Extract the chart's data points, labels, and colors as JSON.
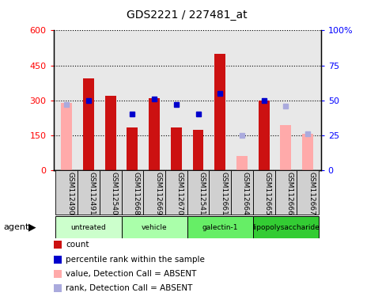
{
  "title": "GDS2221 / 227481_at",
  "samples": [
    "GSM112490",
    "GSM112491",
    "GSM112540",
    "GSM112668",
    "GSM112669",
    "GSM112670",
    "GSM112541",
    "GSM112661",
    "GSM112664",
    "GSM112665",
    "GSM112666",
    "GSM112667"
  ],
  "groups": [
    {
      "name": "untreated",
      "indices": [
        0,
        1,
        2
      ],
      "color": "#ccffcc"
    },
    {
      "name": "vehicle",
      "indices": [
        3,
        4,
        5
      ],
      "color": "#aaffaa"
    },
    {
      "name": "galectin-1",
      "indices": [
        6,
        7,
        8
      ],
      "color": "#66ee66"
    },
    {
      "name": "lipopolysaccharide",
      "indices": [
        9,
        10,
        11
      ],
      "color": "#33cc33"
    }
  ],
  "count_present": [
    null,
    395,
    320,
    185,
    310,
    185,
    175,
    500,
    null,
    300,
    null,
    null
  ],
  "count_absent": [
    290,
    null,
    null,
    null,
    null,
    null,
    null,
    null,
    60,
    null,
    195,
    155
  ],
  "pct_present": [
    null,
    50,
    null,
    40,
    51,
    47,
    40,
    55,
    null,
    50,
    null,
    null
  ],
  "pct_absent": [
    47,
    null,
    null,
    null,
    null,
    null,
    null,
    null,
    25,
    null,
    46,
    26
  ],
  "left_ylim": [
    0,
    600
  ],
  "right_ylim": [
    0,
    100
  ],
  "left_yticks": [
    0,
    150,
    300,
    450,
    600
  ],
  "left_yticklabels": [
    "0",
    "150",
    "300",
    "450",
    "600"
  ],
  "right_yticks": [
    0,
    25,
    50,
    75,
    100
  ],
  "right_yticklabels": [
    "0",
    "25",
    "50",
    "75",
    "100%"
  ],
  "count_color": "#cc1111",
  "count_absent_color": "#ffaaaa",
  "pct_color": "#0000cc",
  "pct_absent_color": "#aaaadd",
  "plot_bg": "#e8e8e8",
  "legend_items": [
    {
      "color": "#cc1111",
      "label": "count"
    },
    {
      "color": "#0000cc",
      "label": "percentile rank within the sample"
    },
    {
      "color": "#ffaaaa",
      "label": "value, Detection Call = ABSENT"
    },
    {
      "color": "#aaaadd",
      "label": "rank, Detection Call = ABSENT"
    }
  ]
}
